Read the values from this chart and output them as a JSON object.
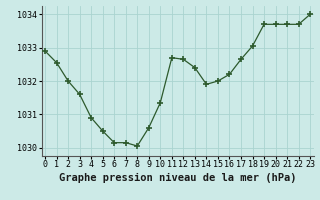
{
  "x": [
    0,
    1,
    2,
    3,
    4,
    5,
    6,
    7,
    8,
    9,
    10,
    11,
    12,
    13,
    14,
    15,
    16,
    17,
    18,
    19,
    20,
    21,
    22,
    23
  ],
  "y": [
    1032.9,
    1032.55,
    1032.0,
    1031.6,
    1030.9,
    1030.5,
    1030.15,
    1030.15,
    1030.05,
    1030.6,
    1031.35,
    1032.7,
    1032.65,
    1032.4,
    1031.9,
    1032.0,
    1032.2,
    1032.65,
    1033.05,
    1033.7,
    1033.7,
    1033.7,
    1033.7,
    1034.0
  ],
  "line_color": "#2d5a2d",
  "bg_color": "#cceae7",
  "grid_color": "#aad4d0",
  "plot_bg": "#cceae7",
  "title": "Graphe pression niveau de la mer (hPa)",
  "xlim": [
    0,
    23
  ],
  "ylim": [
    1029.75,
    1034.25
  ],
  "yticks": [
    1030,
    1031,
    1032,
    1033,
    1034
  ],
  "xtick_labels": [
    "0",
    "1",
    "2",
    "3",
    "4",
    "5",
    "6",
    "7",
    "8",
    "9",
    "10",
    "11",
    "12",
    "13",
    "14",
    "15",
    "16",
    "17",
    "18",
    "19",
    "20",
    "21",
    "22",
    "23"
  ],
  "title_fontsize": 7.5,
  "tick_fontsize": 6.0,
  "spine_color": "#555555"
}
